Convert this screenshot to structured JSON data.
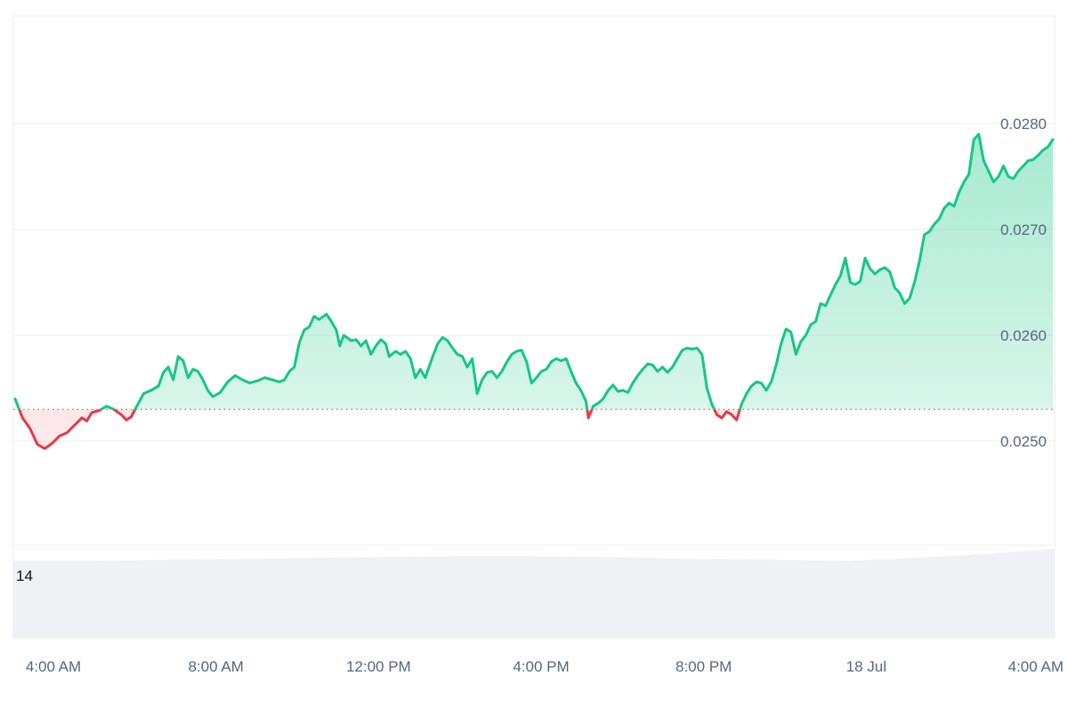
{
  "chart_data": {
    "type": "area",
    "title": "",
    "xlabel": "",
    "ylabel": "",
    "baseline": 0.0253,
    "ylim": [
      0.024,
      0.029
    ],
    "yticks": [
      0.025,
      0.026,
      0.027,
      0.028
    ],
    "ytick_labels": [
      "0.0250",
      "0.0260",
      "0.0270",
      "0.0280"
    ],
    "x_ticks": [
      {
        "label": "4:00 AM",
        "hours": 0
      },
      {
        "label": "8:00 AM",
        "hours": 4
      },
      {
        "label": "12:00 PM",
        "hours": 8
      },
      {
        "label": "4:00 PM",
        "hours": 12
      },
      {
        "label": "8:00 PM",
        "hours": 16
      },
      {
        "label": "18 Jul",
        "hours": 20
      },
      {
        "label": "4:00 AM",
        "hours": 24
      }
    ],
    "colors": {
      "above": "#16c784",
      "below": "#ea3943",
      "volume": "#eff1f5",
      "grid": "#eeeeee"
    },
    "series": [
      {
        "points": [
          [
            -0.85,
            0.0254
          ],
          [
            -0.7,
            0.02522
          ],
          [
            -0.55,
            0.02512
          ],
          [
            -0.4,
            0.02497
          ],
          [
            -0.25,
            0.02493
          ],
          [
            -0.1,
            0.02498
          ],
          [
            0.05,
            0.02505
          ],
          [
            0.2,
            0.02508
          ],
          [
            0.35,
            0.02515
          ],
          [
            0.5,
            0.02522
          ],
          [
            0.6,
            0.02519
          ],
          [
            0.7,
            0.02527
          ],
          [
            0.85,
            0.02529
          ],
          [
            1.0,
            0.02533
          ],
          [
            1.15,
            0.0253
          ],
          [
            1.3,
            0.02525
          ],
          [
            1.4,
            0.0252
          ],
          [
            1.5,
            0.02523
          ],
          [
            1.6,
            0.02532
          ],
          [
            1.75,
            0.02545
          ],
          [
            1.9,
            0.02548
          ],
          [
            2.05,
            0.02552
          ],
          [
            2.15,
            0.02565
          ],
          [
            2.25,
            0.0257
          ],
          [
            2.35,
            0.02558
          ],
          [
            2.45,
            0.0258
          ],
          [
            2.55,
            0.02576
          ],
          [
            2.65,
            0.0256
          ],
          [
            2.75,
            0.02568
          ],
          [
            2.85,
            0.02566
          ],
          [
            2.95,
            0.02558
          ],
          [
            3.05,
            0.02548
          ],
          [
            3.15,
            0.02542
          ],
          [
            3.3,
            0.02546
          ],
          [
            3.45,
            0.02556
          ],
          [
            3.6,
            0.02562
          ],
          [
            3.75,
            0.02558
          ],
          [
            3.9,
            0.02555
          ],
          [
            4.05,
            0.02557
          ],
          [
            4.2,
            0.0256
          ],
          [
            4.35,
            0.02558
          ],
          [
            4.5,
            0.02556
          ],
          [
            4.6,
            0.02558
          ],
          [
            4.7,
            0.02566
          ],
          [
            4.8,
            0.0257
          ],
          [
            4.9,
            0.02593
          ],
          [
            5.0,
            0.02605
          ],
          [
            5.1,
            0.02608
          ],
          [
            5.2,
            0.02618
          ],
          [
            5.3,
            0.02615
          ],
          [
            5.45,
            0.0262
          ],
          [
            5.55,
            0.02613
          ],
          [
            5.65,
            0.02605
          ],
          [
            5.72,
            0.0259
          ],
          [
            5.8,
            0.026
          ],
          [
            5.95,
            0.02595
          ],
          [
            6.05,
            0.02596
          ],
          [
            6.15,
            0.0259
          ],
          [
            6.25,
            0.02595
          ],
          [
            6.35,
            0.02582
          ],
          [
            6.45,
            0.0259
          ],
          [
            6.55,
            0.02596
          ],
          [
            6.65,
            0.02592
          ],
          [
            6.72,
            0.0258
          ],
          [
            6.85,
            0.02585
          ],
          [
            6.95,
            0.02582
          ],
          [
            7.05,
            0.02585
          ],
          [
            7.15,
            0.02578
          ],
          [
            7.25,
            0.0256
          ],
          [
            7.35,
            0.02568
          ],
          [
            7.45,
            0.0256
          ],
          [
            7.6,
            0.0258
          ],
          [
            7.7,
            0.02592
          ],
          [
            7.8,
            0.02598
          ],
          [
            7.9,
            0.02595
          ],
          [
            8.0,
            0.02588
          ],
          [
            8.1,
            0.02582
          ],
          [
            8.2,
            0.0258
          ],
          [
            8.3,
            0.0257
          ],
          [
            8.4,
            0.02578
          ],
          [
            8.5,
            0.02545
          ],
          [
            8.6,
            0.02558
          ],
          [
            8.7,
            0.02565
          ],
          [
            8.8,
            0.02566
          ],
          [
            8.9,
            0.0256
          ],
          [
            9.0,
            0.02566
          ],
          [
            9.1,
            0.02575
          ],
          [
            9.2,
            0.02582
          ],
          [
            9.3,
            0.02585
          ],
          [
            9.4,
            0.02586
          ],
          [
            9.5,
            0.02575
          ],
          [
            9.6,
            0.02555
          ],
          [
            9.7,
            0.0256
          ],
          [
            9.8,
            0.02566
          ],
          [
            9.9,
            0.02568
          ],
          [
            10.0,
            0.02575
          ],
          [
            10.1,
            0.02578
          ],
          [
            10.2,
            0.02576
          ],
          [
            10.3,
            0.02578
          ],
          [
            10.4,
            0.02566
          ],
          [
            10.5,
            0.02555
          ],
          [
            10.6,
            0.02548
          ],
          [
            10.7,
            0.02538
          ],
          [
            10.75,
            0.02522
          ],
          [
            10.85,
            0.02533
          ],
          [
            10.95,
            0.02536
          ],
          [
            11.05,
            0.0254
          ],
          [
            11.15,
            0.02548
          ],
          [
            11.25,
            0.02553
          ],
          [
            11.35,
            0.02547
          ],
          [
            11.45,
            0.02548
          ],
          [
            11.55,
            0.02546
          ],
          [
            11.65,
            0.02555
          ],
          [
            11.75,
            0.02562
          ],
          [
            11.85,
            0.02568
          ],
          [
            11.95,
            0.02573
          ],
          [
            12.05,
            0.02572
          ],
          [
            12.15,
            0.02566
          ],
          [
            12.25,
            0.0257
          ],
          [
            12.35,
            0.02565
          ],
          [
            12.45,
            0.0257
          ],
          [
            12.55,
            0.02578
          ],
          [
            12.65,
            0.02586
          ],
          [
            12.75,
            0.02588
          ],
          [
            12.85,
            0.02587
          ],
          [
            12.95,
            0.02588
          ],
          [
            13.05,
            0.02582
          ],
          [
            13.15,
            0.0255
          ],
          [
            13.25,
            0.02535
          ],
          [
            13.35,
            0.02525
          ],
          [
            13.45,
            0.02522
          ],
          [
            13.55,
            0.02528
          ],
          [
            13.65,
            0.02525
          ],
          [
            13.75,
            0.0252
          ],
          [
            13.85,
            0.02535
          ],
          [
            13.95,
            0.02545
          ],
          [
            14.05,
            0.02552
          ],
          [
            14.15,
            0.02556
          ],
          [
            14.25,
            0.02555
          ],
          [
            14.35,
            0.02548
          ],
          [
            14.45,
            0.02556
          ],
          [
            14.55,
            0.02572
          ],
          [
            14.65,
            0.02592
          ],
          [
            14.75,
            0.02606
          ],
          [
            14.85,
            0.02603
          ],
          [
            14.95,
            0.02582
          ],
          [
            15.05,
            0.02594
          ],
          [
            15.15,
            0.026
          ],
          [
            15.25,
            0.0261
          ],
          [
            15.35,
            0.02613
          ],
          [
            15.45,
            0.0263
          ],
          [
            15.55,
            0.02628
          ],
          [
            15.65,
            0.02638
          ],
          [
            15.75,
            0.02648
          ],
          [
            15.85,
            0.02656
          ],
          [
            15.95,
            0.02673
          ],
          [
            16.05,
            0.0265
          ],
          [
            16.15,
            0.02648
          ],
          [
            16.25,
            0.02651
          ],
          [
            16.35,
            0.02673
          ],
          [
            16.45,
            0.02663
          ],
          [
            16.55,
            0.02658
          ],
          [
            16.65,
            0.02662
          ],
          [
            16.75,
            0.02664
          ],
          [
            16.85,
            0.0266
          ],
          [
            16.95,
            0.02645
          ],
          [
            17.05,
            0.0264
          ],
          [
            17.15,
            0.0263
          ],
          [
            17.25,
            0.02635
          ],
          [
            17.35,
            0.0265
          ],
          [
            17.45,
            0.0267
          ],
          [
            17.55,
            0.02695
          ],
          [
            17.65,
            0.02698
          ],
          [
            17.75,
            0.02705
          ],
          [
            17.85,
            0.0271
          ],
          [
            17.95,
            0.0272
          ],
          [
            18.05,
            0.02725
          ],
          [
            18.15,
            0.02722
          ],
          [
            18.25,
            0.02735
          ],
          [
            18.35,
            0.02745
          ],
          [
            18.45,
            0.02752
          ],
          [
            18.55,
            0.02785
          ],
          [
            18.65,
            0.0279
          ],
          [
            18.75,
            0.02765
          ],
          [
            18.85,
            0.02755
          ],
          [
            18.95,
            0.02745
          ],
          [
            19.05,
            0.0275
          ],
          [
            19.15,
            0.0276
          ],
          [
            19.25,
            0.0275
          ],
          [
            19.35,
            0.02748
          ],
          [
            19.45,
            0.02755
          ],
          [
            19.55,
            0.0276
          ],
          [
            19.65,
            0.02765
          ],
          [
            19.75,
            0.02766
          ],
          [
            19.85,
            0.0277
          ],
          [
            19.95,
            0.02775
          ],
          [
            20.05,
            0.02778
          ],
          [
            20.15,
            0.02785
          ]
        ]
      }
    ],
    "volume": {
      "label": "14",
      "values": [
        14,
        14,
        14,
        14.1,
        14.2,
        14.3,
        14.4,
        14.5,
        14.6,
        14.7,
        14.8,
        14.9,
        14.9,
        14.8,
        14.7,
        14.6,
        14.4,
        14.3,
        14.2,
        14.1,
        14.0,
        14.3,
        14.7,
        15.1,
        15.6,
        16.2
      ]
    }
  }
}
